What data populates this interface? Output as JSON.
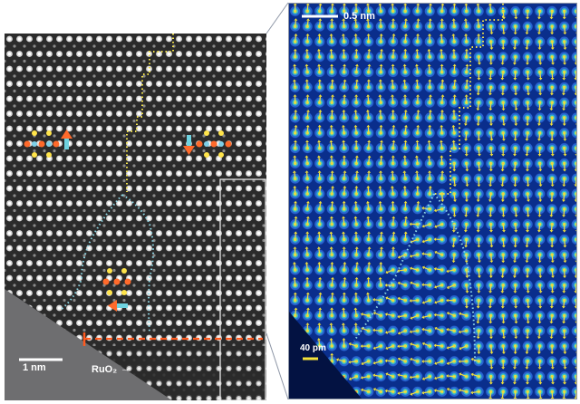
{
  "figure": {
    "left_panel": {
      "scale_bar_label": "1 nm",
      "layer_label": "RuO₂",
      "layer_arrow": "→"
    },
    "right_panel": {
      "scale_bar_label": "0.5 nm",
      "vector_scale_label": "40 pm"
    }
  },
  "colors": {
    "boundary_dots_left": "#f0e04a",
    "boundary_dots_cyan": "#8fd8e6",
    "interface_dash": "#ff5a1f",
    "displacement_arrows": "#f4e23a",
    "heatmap_background": "#0a2e8c",
    "atom_orange": "#ff6a2b",
    "atom_cyan": "#7fd0e8",
    "atom_yellow": "#ffe44a",
    "polarization_arrow": "#6fd3e0"
  },
  "icons": {
    "polarization_up": "arrow-up-icon",
    "polarization_down": "arrow-down-icon",
    "polarization_left": "arrow-left-icon"
  }
}
